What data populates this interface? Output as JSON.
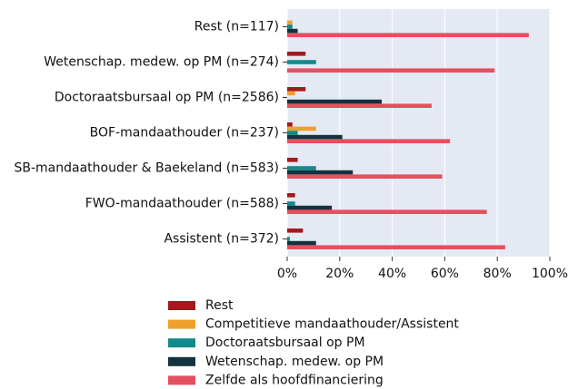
{
  "chart_data": {
    "type": "barh",
    "categories": [
      "Rest (n=117)",
      "Wetenschap. medew. op PM (n=274)",
      "Doctoraatsbursaal op PM (n=2586)",
      "BOF-mandaathouder (n=237)",
      "SB-mandaathouder & Baekeland (n=583)",
      "FWO-mandaathouder (n=588)",
      "Assistent (n=372)"
    ],
    "series": [
      {
        "name": "Rest",
        "color": "#a3191c",
        "values": [
          0,
          7,
          7,
          2,
          4,
          3,
          6
        ]
      },
      {
        "name": "Competitieve mandaathouder/Assistent",
        "color": "#f0a02c",
        "values": [
          2,
          0,
          3,
          11,
          0,
          0,
          0
        ]
      },
      {
        "name": "Doctoraatsbursaal op PM",
        "color": "#138a8a",
        "values": [
          2,
          11,
          0,
          4,
          11,
          3,
          1
        ]
      },
      {
        "name": "Wetenschap. medew. op PM",
        "color": "#13323f",
        "values": [
          4,
          0,
          36,
          21,
          25,
          17,
          11
        ]
      },
      {
        "name": "Zelfde als hoofdfinanciering",
        "color": "#e4505e",
        "values": [
          92,
          79,
          55,
          62,
          59,
          76,
          83
        ]
      }
    ],
    "xlim": [
      0,
      100
    ],
    "xticks": [
      {
        "value": 0,
        "label": "0%"
      },
      {
        "value": 20,
        "label": "20%"
      },
      {
        "value": 40,
        "label": "40%"
      },
      {
        "value": 60,
        "label": "60%"
      },
      {
        "value": 80,
        "label": "80%"
      },
      {
        "value": 100,
        "label": "100%"
      }
    ],
    "grid": true
  }
}
